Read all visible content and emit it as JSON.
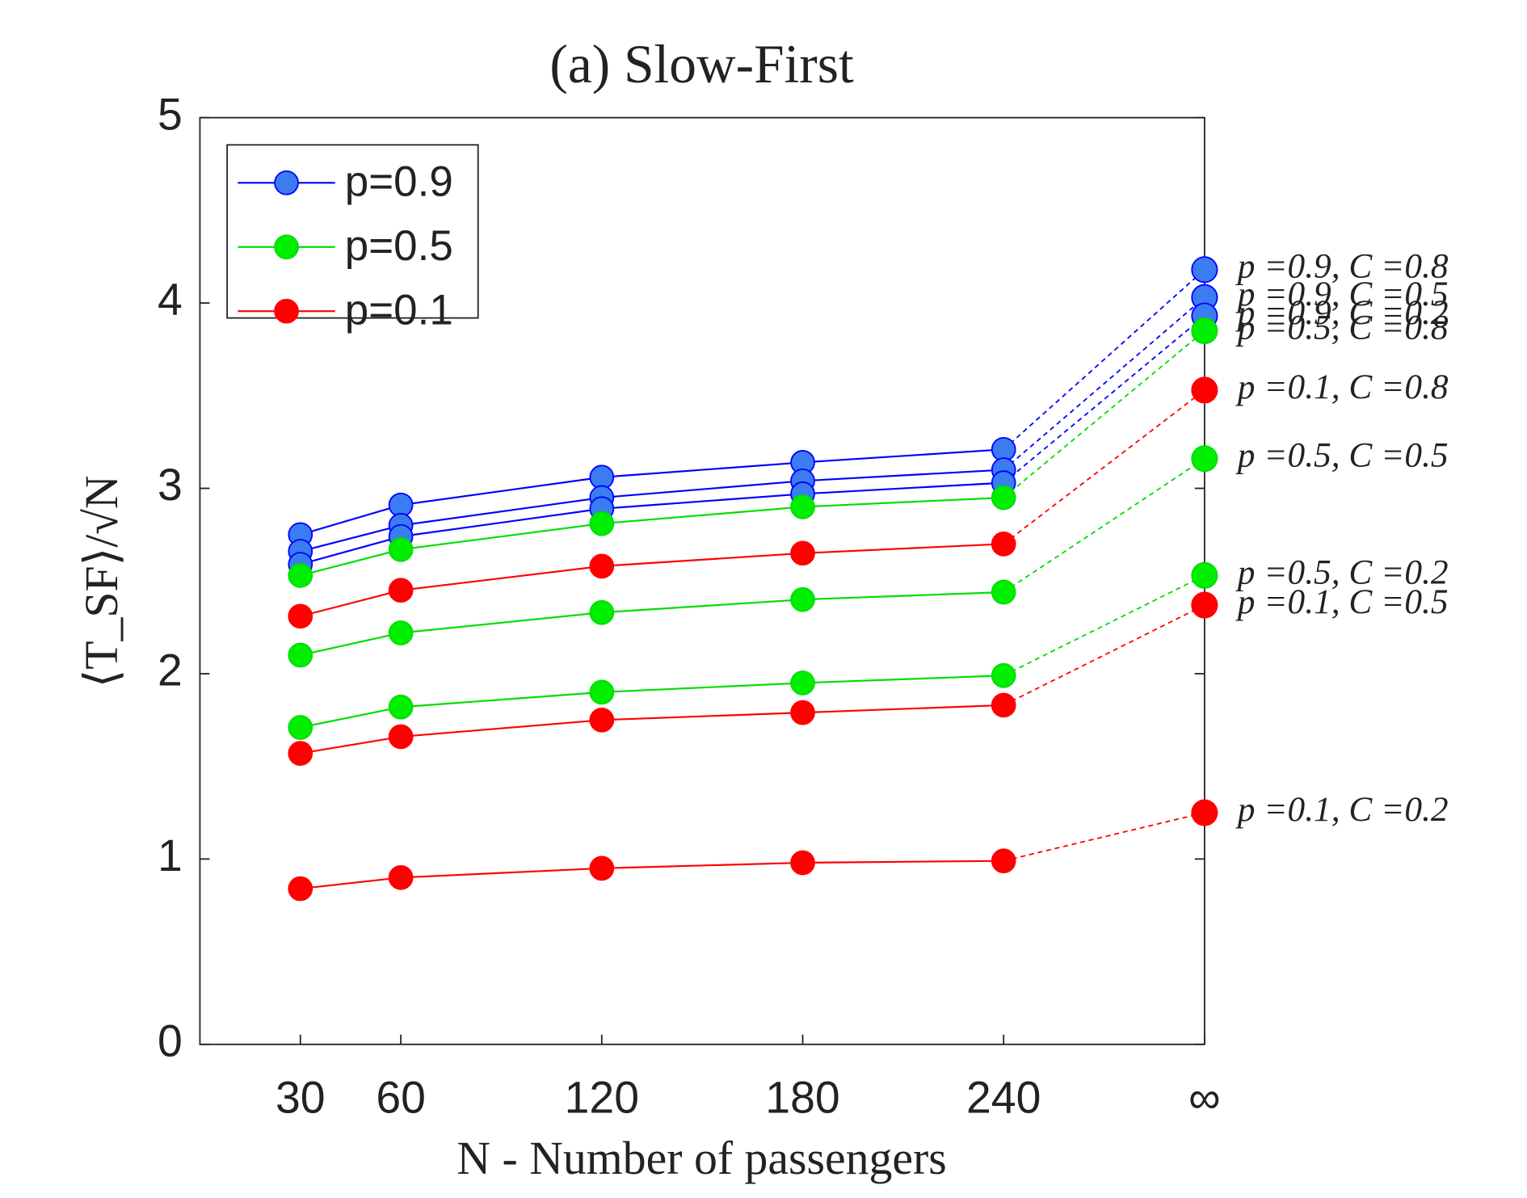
{
  "chart_data": {
    "type": "line",
    "title": "(a) Slow-First",
    "x_label": "N - Number of passengers",
    "y_label": "⟨T_SF⟩/√N",
    "x": [
      30,
      60,
      120,
      180,
      240
    ],
    "xlim": [
      0,
      300
    ],
    "xticks": [
      30,
      60,
      120,
      180,
      240,
      {
        "value": 300,
        "label": "∞"
      }
    ],
    "ylim": [
      0,
      5
    ],
    "yticks": [
      0,
      1,
      2,
      3,
      4,
      5
    ],
    "legend": "upper left",
    "series": [
      {
        "name": "p=0.9",
        "color": "#0000ff",
        "marker_color": "#3b7cf2",
        "lines": [
          {
            "label": "p =0.9, C =0.8",
            "values": [
              2.75,
              2.91,
              3.06,
              3.14,
              3.21
            ],
            "limit": 4.18
          },
          {
            "label": "p =0.9, C =0.5",
            "values": [
              2.66,
              2.8,
              2.95,
              3.04,
              3.1
            ],
            "limit": 4.03
          },
          {
            "label": "p =0.9, C =0.2",
            "values": [
              2.59,
              2.74,
              2.89,
              2.97,
              3.03
            ],
            "limit": 3.93
          }
        ]
      },
      {
        "name": "p=0.5",
        "color": "#00dd00",
        "marker_color": "#00ee00",
        "lines": [
          {
            "label": "p =0.5, C =0.8",
            "values": [
              2.53,
              2.67,
              2.81,
              2.9,
              2.95
            ],
            "limit": 3.85
          },
          {
            "label": "p =0.5, C =0.5",
            "values": [
              2.1,
              2.22,
              2.33,
              2.4,
              2.44
            ],
            "limit": 3.16
          },
          {
            "label": "p =0.5, C =0.2",
            "values": [
              1.71,
              1.82,
              1.9,
              1.95,
              1.99
            ],
            "limit": 2.53
          }
        ]
      },
      {
        "name": "p=0.1",
        "color": "#ff0000",
        "marker_color": "#ff0000",
        "lines": [
          {
            "label": "p =0.1, C =0.8",
            "values": [
              2.31,
              2.45,
              2.58,
              2.65,
              2.7
            ],
            "limit": 3.53
          },
          {
            "label": "p =0.1, C =0.5",
            "values": [
              1.57,
              1.66,
              1.75,
              1.79,
              1.83
            ],
            "limit": 2.37
          },
          {
            "label": "p =0.1, C =0.2",
            "values": [
              0.84,
              0.9,
              0.95,
              0.98,
              0.99
            ],
            "limit": 1.25
          }
        ]
      }
    ]
  }
}
